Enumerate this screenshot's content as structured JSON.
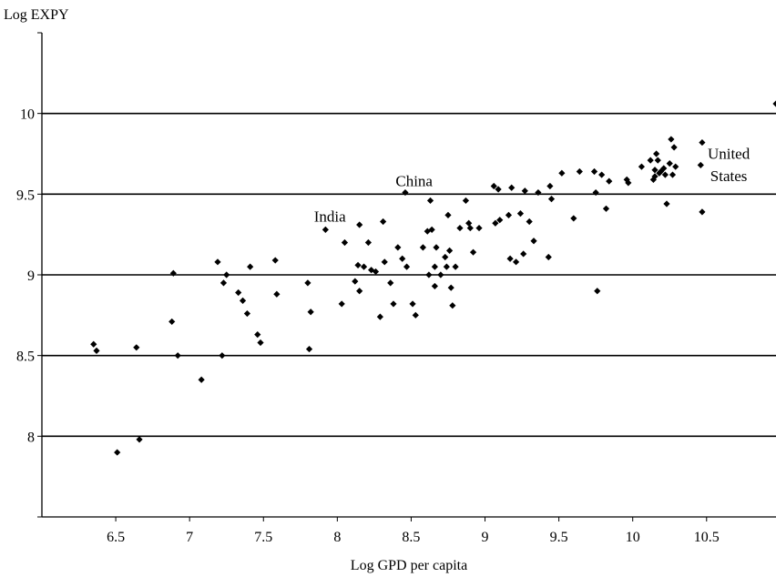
{
  "chart_data": {
    "type": "scatter",
    "ylabel": "Log EXPY",
    "xlabel": "Log GPD per capita",
    "xlim": [
      6.0,
      10.97
    ],
    "ylim": [
      7.5,
      10.5
    ],
    "xticks": [
      "6.5",
      "7",
      "7.5",
      "8",
      "8.5",
      "9",
      "9.5",
      "10",
      "10.5"
    ],
    "yticks": [
      "8",
      "8.5",
      "9",
      "9.5",
      "10"
    ],
    "grid": "horizontal",
    "marker": "diamond",
    "annotations": [
      {
        "text": "China",
        "x": 8.52,
        "y": 9.55
      },
      {
        "text": "India",
        "x": 7.95,
        "y": 9.33
      },
      {
        "text": "United",
        "x": 10.65,
        "y": 9.72
      },
      {
        "text": "States",
        "x": 10.65,
        "y": 9.58
      }
    ],
    "points": [
      [
        6.35,
        8.57
      ],
      [
        6.37,
        8.53
      ],
      [
        6.51,
        7.9
      ],
      [
        6.64,
        8.55
      ],
      [
        6.66,
        7.98
      ],
      [
        6.88,
        8.71
      ],
      [
        6.89,
        9.01
      ],
      [
        6.92,
        8.5
      ],
      [
        7.08,
        8.35
      ],
      [
        7.19,
        9.08
      ],
      [
        7.22,
        8.5
      ],
      [
        7.23,
        8.95
      ],
      [
        7.25,
        9.0
      ],
      [
        7.33,
        8.89
      ],
      [
        7.36,
        8.84
      ],
      [
        7.39,
        8.76
      ],
      [
        7.41,
        9.05
      ],
      [
        7.46,
        8.63
      ],
      [
        7.48,
        8.58
      ],
      [
        7.58,
        9.09
      ],
      [
        7.59,
        8.88
      ],
      [
        7.8,
        8.95
      ],
      [
        7.81,
        8.54
      ],
      [
        7.82,
        8.77
      ],
      [
        7.92,
        9.28
      ],
      [
        8.03,
        8.82
      ],
      [
        8.05,
        9.2
      ],
      [
        8.12,
        8.96
      ],
      [
        8.14,
        9.06
      ],
      [
        8.15,
        8.9
      ],
      [
        8.15,
        9.31
      ],
      [
        8.18,
        9.05
      ],
      [
        8.21,
        9.2
      ],
      [
        8.23,
        9.03
      ],
      [
        8.26,
        9.02
      ],
      [
        8.29,
        8.74
      ],
      [
        8.31,
        9.33
      ],
      [
        8.32,
        9.08
      ],
      [
        8.36,
        8.95
      ],
      [
        8.38,
        8.82
      ],
      [
        8.41,
        9.17
      ],
      [
        8.44,
        9.1
      ],
      [
        8.46,
        9.51
      ],
      [
        8.47,
        9.05
      ],
      [
        8.51,
        8.82
      ],
      [
        8.53,
        8.75
      ],
      [
        8.58,
        9.17
      ],
      [
        8.61,
        9.27
      ],
      [
        8.62,
        9.0
      ],
      [
        8.63,
        9.46
      ],
      [
        8.64,
        9.28
      ],
      [
        8.66,
        9.05
      ],
      [
        8.66,
        8.93
      ],
      [
        8.67,
        9.17
      ],
      [
        8.7,
        9.0
      ],
      [
        8.73,
        9.11
      ],
      [
        8.74,
        9.05
      ],
      [
        8.75,
        9.37
      ],
      [
        8.76,
        9.15
      ],
      [
        8.77,
        8.92
      ],
      [
        8.78,
        8.81
      ],
      [
        8.8,
        9.05
      ],
      [
        8.83,
        9.29
      ],
      [
        8.87,
        9.46
      ],
      [
        8.89,
        9.32
      ],
      [
        8.9,
        9.29
      ],
      [
        8.92,
        9.14
      ],
      [
        8.96,
        9.29
      ],
      [
        9.06,
        9.55
      ],
      [
        9.07,
        9.32
      ],
      [
        9.09,
        9.53
      ],
      [
        9.1,
        9.34
      ],
      [
        9.16,
        9.37
      ],
      [
        9.17,
        9.1
      ],
      [
        9.18,
        9.54
      ],
      [
        9.21,
        9.08
      ],
      [
        9.24,
        9.38
      ],
      [
        9.26,
        9.13
      ],
      [
        9.27,
        9.52
      ],
      [
        9.3,
        9.33
      ],
      [
        9.33,
        9.21
      ],
      [
        9.36,
        9.51
      ],
      [
        9.43,
        9.11
      ],
      [
        9.44,
        9.55
      ],
      [
        9.45,
        9.47
      ],
      [
        9.52,
        9.63
      ],
      [
        9.6,
        9.35
      ],
      [
        9.64,
        9.64
      ],
      [
        9.74,
        9.64
      ],
      [
        9.75,
        9.51
      ],
      [
        9.76,
        8.9
      ],
      [
        9.79,
        9.62
      ],
      [
        9.82,
        9.41
      ],
      [
        9.84,
        9.58
      ],
      [
        9.96,
        9.59
      ],
      [
        9.97,
        9.57
      ],
      [
        10.06,
        9.67
      ],
      [
        10.12,
        9.71
      ],
      [
        10.14,
        9.59
      ],
      [
        10.15,
        9.65
      ],
      [
        10.15,
        9.61
      ],
      [
        10.16,
        9.75
      ],
      [
        10.17,
        9.71
      ],
      [
        10.18,
        9.63
      ],
      [
        10.19,
        9.64
      ],
      [
        10.21,
        9.66
      ],
      [
        10.22,
        9.62
      ],
      [
        10.23,
        9.44
      ],
      [
        10.25,
        9.69
      ],
      [
        10.26,
        9.84
      ],
      [
        10.27,
        9.62
      ],
      [
        10.28,
        9.79
      ],
      [
        10.29,
        9.67
      ],
      [
        10.46,
        9.68
      ],
      [
        10.47,
        9.82
      ],
      [
        10.47,
        9.39
      ],
      [
        10.97,
        10.06
      ]
    ]
  }
}
